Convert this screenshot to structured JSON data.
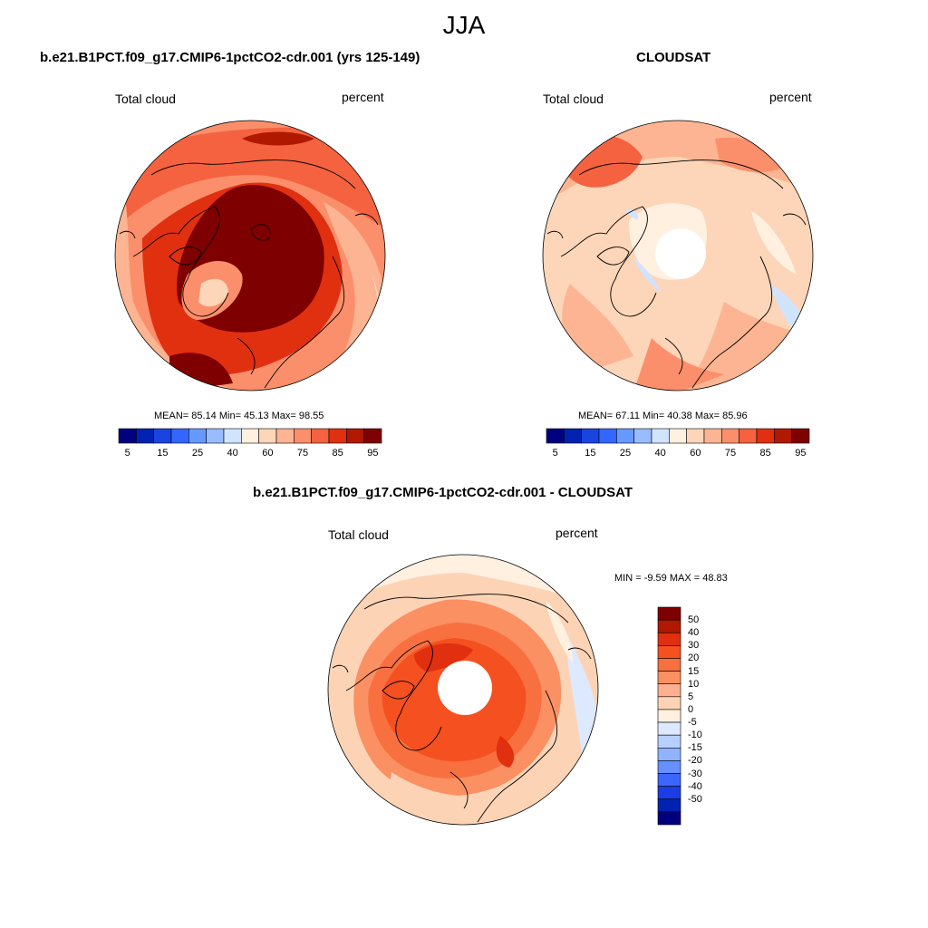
{
  "figure": {
    "title": "JJA"
  },
  "panels": [
    {
      "title": "b.e21.B1PCT.f09_g17.CMIP6-1pctCO2-cdr.001 (yrs 125-149)",
      "left_label": "Total cloud",
      "right_label": "percent",
      "stats": "MEAN=  85.14  Min=  45.13  Max=  98.55"
    },
    {
      "title": "CLOUDSAT",
      "left_label": "Total cloud",
      "right_label": "percent",
      "stats": "MEAN=  67.11  Min=  40.38  Max=  85.96"
    },
    {
      "title": "b.e21.B1PCT.f09_g17.CMIP6-1pctCO2-cdr.001 - CLOUDSAT",
      "left_label": "Total cloud",
      "right_label": "percent",
      "stats": "MIN =  -9.59 MAX =  48.83"
    }
  ],
  "colorbars": {
    "abs": {
      "colors": [
        "#00007f",
        "#0022b0",
        "#1a44e0",
        "#3366ff",
        "#6699ff",
        "#99bbff",
        "#d0e4ff",
        "#fff0e0",
        "#fdd5b8",
        "#fcb492",
        "#fb8f6b",
        "#f5623f",
        "#e03010",
        "#b01800",
        "#7f0000"
      ],
      "tick_labels": [
        "5",
        "15",
        "25",
        "40",
        "60",
        "75",
        "85",
        "95"
      ]
    },
    "diff": {
      "colors_top_to_bottom": [
        "#7f0000",
        "#b01800",
        "#e03010",
        "#f5501f",
        "#f87040",
        "#fb9062",
        "#fcb090",
        "#fdd3b5",
        "#fff0e0",
        "#dde9ff",
        "#b8d0ff",
        "#8fb3ff",
        "#668fff",
        "#3d66ff",
        "#1a3de6",
        "#0022b0",
        "#00007f"
      ],
      "tick_labels": [
        "50",
        "40",
        "30",
        "20",
        "15",
        "10",
        "5",
        "0",
        "-5",
        "-10",
        "-15",
        "-20",
        "-30",
        "-40",
        "-50"
      ]
    }
  }
}
